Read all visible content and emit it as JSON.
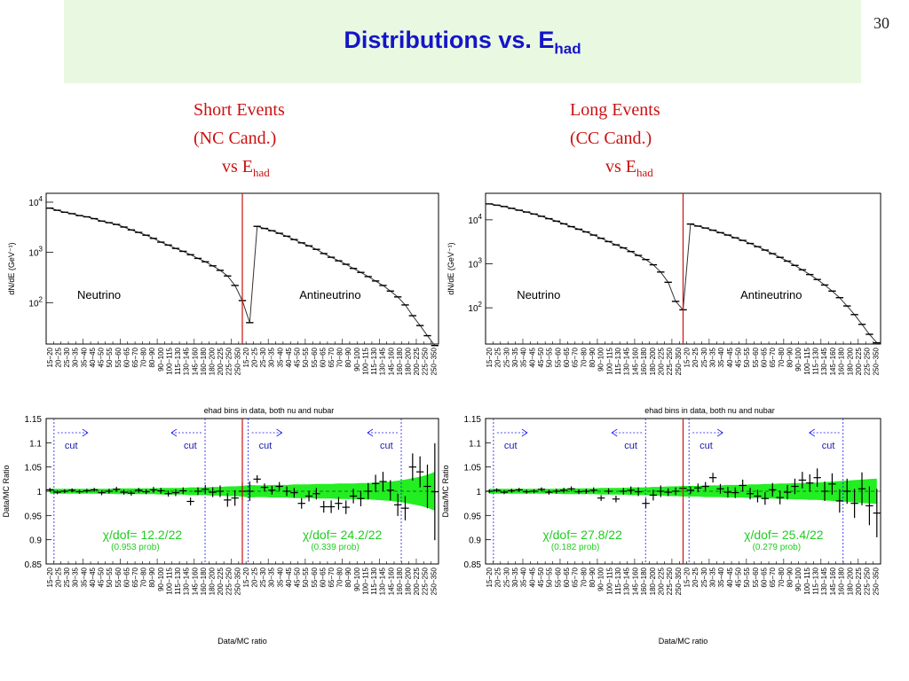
{
  "slide": {
    "title_main": "Distributions vs. E",
    "title_sub": "had",
    "page_number": "30"
  },
  "captions": {
    "short": {
      "line1": "Short Events",
      "line2": "(NC Cand.)",
      "line3": "vs E",
      "line3_sub": "had"
    },
    "long": {
      "line1": "Long Events",
      "line2": "(CC Cand.)",
      "line3": "vs E",
      "line3_sub": "had"
    }
  },
  "colors": {
    "title": "#1515c8",
    "caption": "#cc1010",
    "band": "#22ee22",
    "cut": "#1a1aee",
    "chi": "#22cc22",
    "divider": "#d01010"
  },
  "chart_data": [
    {
      "type": "line",
      "panel": "short-spectrum",
      "ylabel": "dN/dE (GeV⁻¹)",
      "log_y": true,
      "ylim": [
        15,
        15000
      ],
      "y_ticks": [
        {
          "v": 10000,
          "base": "10",
          "exp": "4"
        },
        {
          "v": 1000,
          "base": "10",
          "exp": "3"
        },
        {
          "v": 100,
          "base": "10",
          "exp": "2"
        }
      ],
      "labels": [
        {
          "text": "Neutrino",
          "x": 3,
          "y": 70
        },
        {
          "text": "Antineutrino",
          "x": 33,
          "y": 70
        }
      ],
      "x": [
        1,
        2,
        3,
        4,
        5,
        6,
        7,
        8,
        9,
        10,
        11,
        12,
        13,
        14,
        15,
        16,
        17,
        18,
        19,
        20,
        21,
        22,
        23,
        24,
        25,
        26,
        27,
        28,
        29,
        30,
        31,
        32,
        33,
        34,
        35,
        36,
        37,
        38,
        39,
        40,
        41,
        42,
        43,
        44,
        45,
        46,
        47,
        48,
        49,
        50,
        51,
        52,
        53
      ],
      "y": [
        7600,
        6900,
        6300,
        5900,
        5400,
        5100,
        4700,
        4200,
        3900,
        3600,
        3200,
        2800,
        2500,
        2200,
        1900,
        1600,
        1400,
        1200,
        1050,
        900,
        760,
        650,
        540,
        440,
        340,
        220,
        110,
        40,
        3300,
        3000,
        2700,
        2400,
        2100,
        1800,
        1550,
        1350,
        1150,
        950,
        800,
        680,
        580,
        480,
        400,
        330,
        270,
        220,
        170,
        130,
        90,
        55,
        35,
        22,
        14
      ]
    },
    {
      "type": "scatter",
      "panel": "short-ratio",
      "title": "ehad bins in data, both nu and nubar",
      "ylabel": "Data/MC Ratio",
      "xlabel": "Data/MC ratio",
      "ylim": [
        0.85,
        1.15
      ],
      "y_ticks": [
        "1.15",
        "1.1",
        "1.05",
        "1",
        "0.95",
        "0.9",
        "0.85"
      ],
      "cut_text": "cut",
      "chi": [
        {
          "text": "χ/dof= 12.2/22",
          "prob": "(0.953 prob)",
          "x": 13
        },
        {
          "text": "χ/dof= 24.2/22",
          "prob": "(0.339 prob)",
          "x": 40
        }
      ],
      "band": [
        0.005,
        0.005,
        0.005,
        0.005,
        0.005,
        0.005,
        0.005,
        0.005,
        0.005,
        0.006,
        0.006,
        0.006,
        0.006,
        0.006,
        0.006,
        0.007,
        0.007,
        0.007,
        0.007,
        0.008,
        0.008,
        0.008,
        0.009,
        0.009,
        0.01,
        0.01,
        0.011,
        0.013,
        0.012,
        0.012,
        0.013,
        0.013,
        0.013,
        0.014,
        0.014,
        0.014,
        0.015,
        0.015,
        0.015,
        0.016,
        0.016,
        0.016,
        0.017,
        0.017,
        0.018,
        0.019,
        0.02,
        0.022,
        0.024,
        0.027,
        0.03,
        0.034,
        0.04
      ],
      "x": [
        1,
        2,
        3,
        4,
        5,
        6,
        7,
        8,
        9,
        10,
        11,
        12,
        13,
        14,
        15,
        16,
        17,
        18,
        19,
        20,
        21,
        22,
        23,
        24,
        25,
        26,
        27,
        28,
        29,
        30,
        31,
        32,
        33,
        34,
        35,
        36,
        37,
        38,
        39,
        40,
        41,
        42,
        43,
        44,
        45,
        46,
        47,
        48,
        49,
        50,
        51,
        52,
        53
      ],
      "y": [
        1.003,
        0.998,
        1.0,
        1.002,
        0.999,
        1.001,
        1.003,
        0.997,
        1.0,
        1.004,
        0.998,
        0.996,
        1.002,
        0.999,
        1.003,
        1.001,
        0.995,
        0.997,
        1.001,
        0.979,
        1.0,
        1.004,
        0.998,
        1.0,
        0.982,
        0.986,
        1.0,
        1.0,
        1.025,
        1.008,
        1.002,
        1.01,
        1.0,
        0.997,
        0.975,
        0.99,
        0.995,
        0.968,
        0.968,
        0.975,
        0.967,
        0.99,
        0.985,
        1.0,
        1.016,
        1.02,
        1.002,
        0.972,
        0.965,
        1.05,
        1.04,
        1.01,
        0.999
      ],
      "err": [
        0.004,
        0.004,
        0.004,
        0.004,
        0.004,
        0.004,
        0.004,
        0.005,
        0.005,
        0.005,
        0.005,
        0.005,
        0.005,
        0.005,
        0.006,
        0.006,
        0.006,
        0.007,
        0.007,
        0.008,
        0.008,
        0.009,
        0.01,
        0.012,
        0.014,
        0.016,
        0.018,
        0.02,
        0.008,
        0.008,
        0.009,
        0.009,
        0.01,
        0.01,
        0.011,
        0.011,
        0.012,
        0.012,
        0.013,
        0.013,
        0.014,
        0.015,
        0.016,
        0.017,
        0.018,
        0.02,
        0.021,
        0.023,
        0.025,
        0.028,
        0.032,
        0.045,
        0.1
      ]
    },
    {
      "type": "line",
      "panel": "long-spectrum",
      "ylabel": "dN/dE (GeV⁻¹)",
      "log_y": true,
      "ylim": [
        15,
        40000
      ],
      "y_ticks": [
        {
          "v": 10000,
          "base": "10",
          "exp": "4"
        },
        {
          "v": 1000,
          "base": "10",
          "exp": "3"
        },
        {
          "v": 100,
          "base": "10",
          "exp": "2"
        }
      ],
      "labels": [
        {
          "text": "Neutrino",
          "x": 3,
          "y": 70
        },
        {
          "text": "Antineutrino",
          "x": 33,
          "y": 70
        }
      ],
      "x": [
        1,
        2,
        3,
        4,
        5,
        6,
        7,
        8,
        9,
        10,
        11,
        12,
        13,
        14,
        15,
        16,
        17,
        18,
        19,
        20,
        21,
        22,
        23,
        24,
        25,
        26,
        27,
        28,
        29,
        30,
        31,
        32,
        33,
        34,
        35,
        36,
        37,
        38,
        39,
        40,
        41,
        42,
        43,
        44,
        45,
        46,
        47,
        48,
        49,
        50,
        51,
        52,
        53
      ],
      "y": [
        23000,
        21500,
        20000,
        18200,
        16500,
        15000,
        13500,
        12000,
        10600,
        9300,
        8100,
        7000,
        6100,
        5300,
        4500,
        3800,
        3200,
        2700,
        2300,
        1900,
        1550,
        1250,
        950,
        650,
        380,
        140,
        90,
        8000,
        7200,
        6500,
        5800,
        5100,
        4500,
        3900,
        3400,
        2900,
        2450,
        2050,
        1700,
        1400,
        1150,
        920,
        730,
        570,
        440,
        330,
        240,
        170,
        110,
        70,
        42,
        25,
        16
      ]
    },
    {
      "type": "scatter",
      "panel": "long-ratio",
      "title": "ehad bins in data, both nu and nubar",
      "ylabel": "Data/MC Ratio",
      "xlabel": "Data/MC ratio",
      "ylim": [
        0.85,
        1.15
      ],
      "y_ticks": [
        "1.15",
        "1.1",
        "1.05",
        "1",
        "0.95",
        "0.9",
        "0.85"
      ],
      "cut_text": "cut",
      "chi": [
        {
          "text": "χ/dof= 27.8/22",
          "prob": "(0.182 prob)",
          "x": 13
        },
        {
          "text": "χ/dof= 25.4/22",
          "prob": "(0.279 prob)",
          "x": 40
        }
      ],
      "band": [
        0.005,
        0.005,
        0.005,
        0.005,
        0.005,
        0.005,
        0.005,
        0.005,
        0.005,
        0.005,
        0.006,
        0.006,
        0.006,
        0.006,
        0.006,
        0.007,
        0.007,
        0.007,
        0.007,
        0.008,
        0.008,
        0.008,
        0.009,
        0.009,
        0.01,
        0.01,
        0.011,
        0.011,
        0.011,
        0.012,
        0.012,
        0.012,
        0.013,
        0.013,
        0.013,
        0.014,
        0.014,
        0.015,
        0.015,
        0.016,
        0.016,
        0.017,
        0.017,
        0.018,
        0.018,
        0.019,
        0.02,
        0.021,
        0.022,
        0.023,
        0.024,
        0.025,
        0.026
      ],
      "x": [
        1,
        2,
        3,
        4,
        5,
        6,
        7,
        8,
        9,
        10,
        11,
        12,
        13,
        14,
        15,
        16,
        17,
        18,
        19,
        20,
        21,
        22,
        23,
        24,
        25,
        26,
        27,
        28,
        29,
        30,
        31,
        32,
        33,
        34,
        35,
        36,
        37,
        38,
        39,
        40,
        41,
        42,
        43,
        44,
        45,
        46,
        47,
        48,
        49,
        50,
        51,
        52,
        53
      ],
      "y": [
        1.0,
        1.002,
        0.998,
        1.001,
        1.003,
        0.999,
        1.0,
        1.004,
        0.998,
        1.0,
        1.002,
        1.005,
        0.999,
        1.0,
        1.002,
        0.986,
        1.0,
        0.984,
        1.0,
        1.002,
        0.999,
        0.975,
        0.992,
        1.0,
        0.998,
        1.0,
        1.006,
        1.002,
        1.007,
        1.01,
        1.028,
        1.005,
        0.998,
        0.997,
        1.012,
        0.995,
        0.99,
        0.985,
        1.003,
        0.987,
        0.998,
        1.01,
        1.023,
        1.017,
        1.028,
        1.0,
        1.015,
        0.98,
        1.0,
        0.975,
        1.005,
        0.97,
        0.955
      ],
      "err": [
        0.004,
        0.004,
        0.004,
        0.004,
        0.004,
        0.004,
        0.004,
        0.004,
        0.005,
        0.005,
        0.005,
        0.005,
        0.005,
        0.005,
        0.006,
        0.006,
        0.006,
        0.007,
        0.007,
        0.008,
        0.009,
        0.01,
        0.011,
        0.012,
        0.008,
        0.008,
        0.008,
        0.008,
        0.009,
        0.009,
        0.01,
        0.01,
        0.011,
        0.011,
        0.012,
        0.012,
        0.013,
        0.013,
        0.014,
        0.014,
        0.015,
        0.016,
        0.017,
        0.018,
        0.019,
        0.02,
        0.022,
        0.024,
        0.026,
        0.03,
        0.034,
        0.04,
        0.05
      ]
    }
  ],
  "bin_labels": [
    "15−20",
    "20−25",
    "25−30",
    "30−35",
    "35−40",
    "40−45",
    "45−50",
    "50−55",
    "55−60",
    "60−65",
    "65−70",
    "70−80",
    "80−90",
    "90−100",
    "100−115",
    "115−130",
    "130−145",
    "145−160",
    "160−180",
    "180−200",
    "200−225",
    "225−250",
    "250−350",
    "15−20",
    "20−25",
    "25−30",
    "30−35",
    "35−40",
    "40−45",
    "45−50",
    "50−55",
    "55−60",
    "60−65",
    "65−70",
    "70−80",
    "80−90",
    "90−100",
    "100−115",
    "115−130",
    "130−145",
    "145−160",
    "160−180",
    "180−200",
    "200−225",
    "225−250",
    "250−350"
  ]
}
